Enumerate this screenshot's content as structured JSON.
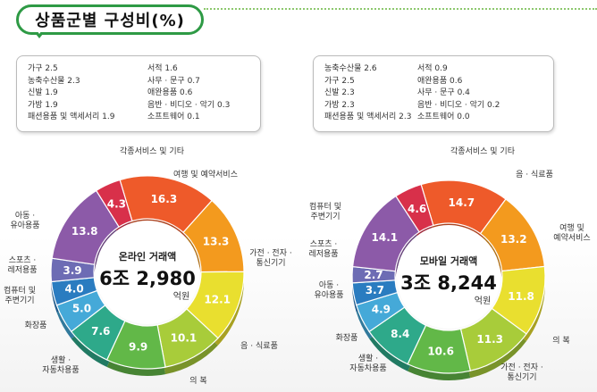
{
  "title": "상품군별 구성비(%)",
  "charts": [
    {
      "center_label": "온라인 거래액",
      "center_value": "6조 2,980",
      "center_unit": "억원",
      "legend_col1": [
        "가구 2.5",
        "농축수산물 2.3",
        "신발 1.9",
        "가방 1.9",
        "패션용품 및 액세서리 1.9"
      ],
      "legend_col2": [
        "서적 1.6",
        "사무 · 문구 0.7",
        "애완용품 0.6",
        "음반 · 비디오 · 악기 0.3",
        "소프트웨어 0.1"
      ]
    },
    {
      "center_label": "모바일 거래액",
      "center_value": "3조 8,244",
      "center_unit": "억원",
      "legend_col1": [
        "농축수산물 2.6",
        "가구 2.5",
        "신발 2.3",
        "가방 2.3",
        "패션용품 및 액세서리 2.3"
      ],
      "legend_col2": [
        "서적 0.9",
        "애완용품 0.6",
        "사무 · 문구 0.4",
        "음반 · 비디오 · 악기 0.2",
        "소프트웨어 0.0"
      ]
    }
  ],
  "chart_data": [
    {
      "type": "pie",
      "title": "온라인 거래액",
      "slices": [
        {
          "label": "여행 및 예약서비스",
          "value": 16.3,
          "color": "#ee5a2a"
        },
        {
          "label": "가전 · 전자 · 통신기기",
          "value": 13.3,
          "color": "#f39a1e"
        },
        {
          "label": "음 · 식료품",
          "value": 12.1,
          "color": "#e9df2f"
        },
        {
          "label": "의 복",
          "value": 10.1,
          "color": "#a8cc3a"
        },
        {
          "label": "생활 · 자동차용품",
          "value": 9.9,
          "color": "#62b848"
        },
        {
          "label": "화장품",
          "value": 7.6,
          "color": "#2ea98a"
        },
        {
          "label": "컴퓨터 및 주변기기",
          "value": 5.0,
          "color": "#45a9d8"
        },
        {
          "label": "스포츠 · 레저용품",
          "value": 4.0,
          "color": "#2a7cc0"
        },
        {
          "label": "아동 · 유아용품",
          "value": 3.9,
          "color": "#6d6cb4"
        },
        {
          "label": "",
          "value": 13.8,
          "color": "#8c5aa8"
        },
        {
          "label": "각종서비스 및 기타",
          "value": 4.3,
          "color": "#d8304a"
        }
      ]
    },
    {
      "type": "pie",
      "title": "모바일 거래액",
      "slices": [
        {
          "label": "음 · 식료품",
          "value": 14.7,
          "color": "#ee5a2a"
        },
        {
          "label": "여행 및 예약서비스",
          "value": 13.2,
          "color": "#f39a1e"
        },
        {
          "label": "의 복",
          "value": 11.8,
          "color": "#e9df2f"
        },
        {
          "label": "가전 · 전자 · 통신기기",
          "value": 11.3,
          "color": "#a8cc3a"
        },
        {
          "label": "생활 · 자동차용품",
          "value": 10.6,
          "color": "#62b848"
        },
        {
          "label": "화장품",
          "value": 8.4,
          "color": "#2ea98a"
        },
        {
          "label": "아동 · 유아용품",
          "value": 4.9,
          "color": "#45a9d8"
        },
        {
          "label": "스포츠 · 레저용품",
          "value": 3.7,
          "color": "#2a7cc0"
        },
        {
          "label": "컴퓨터 및 주변기기",
          "value": 2.7,
          "color": "#6d6cb4"
        },
        {
          "label": "",
          "value": 14.1,
          "color": "#8c5aa8"
        },
        {
          "label": "각종서비스 및 기타",
          "value": 4.6,
          "color": "#d8304a"
        }
      ]
    }
  ]
}
